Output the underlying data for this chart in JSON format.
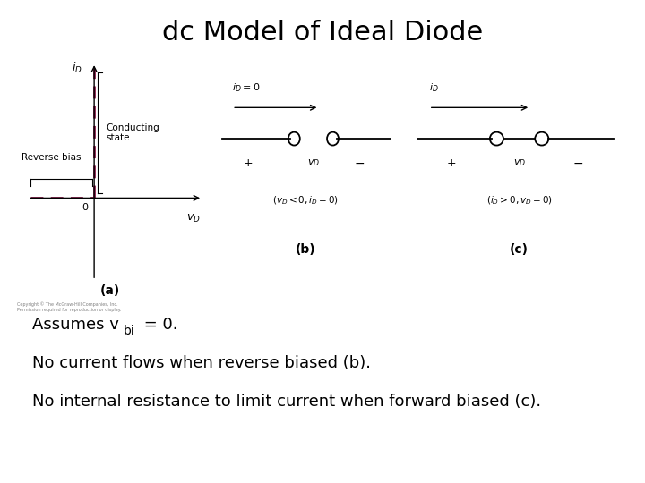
{
  "title": "dc Model of Ideal Diode",
  "title_fontsize": 22,
  "bg_color": "#ffffff",
  "text_color": "#000000",
  "diode_color": "#8B1A4A",
  "line2": "No current flows when reverse biased (b).",
  "line3": "No internal resistance to limit current when forward biased (c).",
  "text_fontsize": 13,
  "copyright_text": "Copyright © The McGraw-Hill Companies, Inc.\nPermission required for reproduction or display.",
  "plot_a_label": "(a)",
  "plot_b_label": "(b)",
  "plot_c_label": "(c)",
  "conducting_label": "Conducting\nstate",
  "reverse_bias_label": "Reverse bias",
  "cond_b": "$(v_D < 0, i_D = 0)$",
  "cond_c": "$(i_D > 0, v_D = 0)$"
}
